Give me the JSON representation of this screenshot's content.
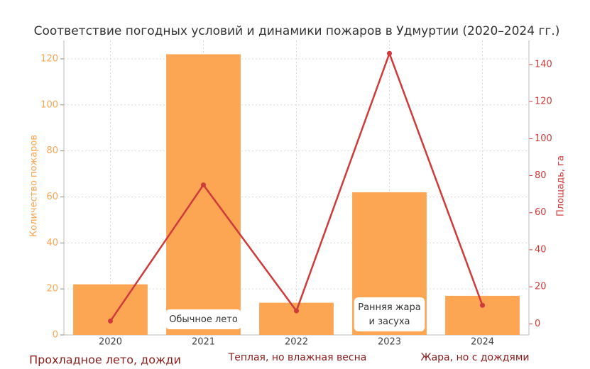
{
  "chart_data": {
    "type": "bar",
    "title": "Соответствие погодных условий и динамики пожаров в Удмуртии (2020–2024 гг.)",
    "categories": [
      "2020",
      "2021",
      "2022",
      "2023",
      "2024"
    ],
    "y_label": "Количество пожаров",
    "y2_label": "Площадь, га",
    "series": [
      {
        "type": "bar",
        "color": "#fca553",
        "values": [
          22,
          122,
          14,
          62,
          17
        ]
      },
      {
        "type": "line",
        "axis": "y2",
        "color": "#d03a3a",
        "values": [
          1.5,
          75,
          7,
          146,
          10
        ]
      }
    ],
    "ylim": [
      0,
      128
    ],
    "yticks": [
      0,
      20,
      40,
      60,
      80,
      100,
      120
    ],
    "y2lim": [
      -6,
      153
    ],
    "y2ticks": [
      0,
      20,
      40,
      60,
      80,
      100,
      120,
      140
    ],
    "grid": true,
    "annotations": [
      "Обычное лето",
      "Ранняя жара\nи засуха"
    ],
    "notes": [
      "Прохладное лето, дожди",
      "Теплая, но влажная весна",
      "Жара, но с дождями"
    ]
  }
}
